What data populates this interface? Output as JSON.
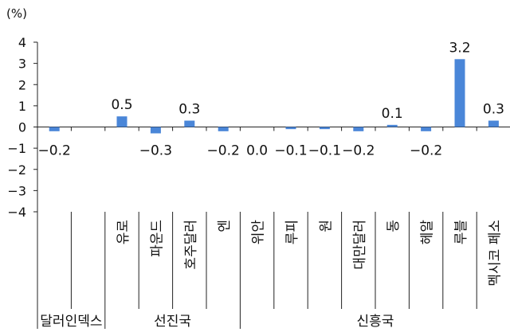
{
  "chart_data": {
    "type": "bar",
    "unit_label": "(%)",
    "ylim": [
      -4,
      4
    ],
    "y_ticks": [
      "4",
      "3",
      "2",
      "1",
      "0",
      "−1",
      "−2",
      "−3",
      "−4"
    ],
    "grid": false,
    "categories": [
      "",
      "",
      "유로",
      "파운드",
      "호주달러",
      "엔",
      "위안",
      "루피",
      "원",
      "대만달러",
      "동",
      "헤알",
      "루블",
      "멕시코 페소"
    ],
    "values": [
      -0.2,
      null,
      0.5,
      -0.3,
      0.3,
      -0.2,
      0.0,
      -0.1,
      -0.1,
      -0.2,
      0.1,
      -0.2,
      3.2,
      0.3
    ],
    "value_labels": [
      "−0.2",
      "",
      "0.5",
      "−0.3",
      "0.3",
      "−0.2",
      "0.0",
      "−0.1",
      "−0.1",
      "−0.2",
      "0.1",
      "−0.2",
      "3.2",
      "0.3"
    ],
    "groups": [
      {
        "label": "달러인덱스",
        "start": 0,
        "end": 1
      },
      {
        "label": "선진국",
        "start": 2,
        "end": 5
      },
      {
        "label": "신흥국",
        "start": 6,
        "end": 13
      }
    ],
    "bar_color": "#4a86d8"
  }
}
